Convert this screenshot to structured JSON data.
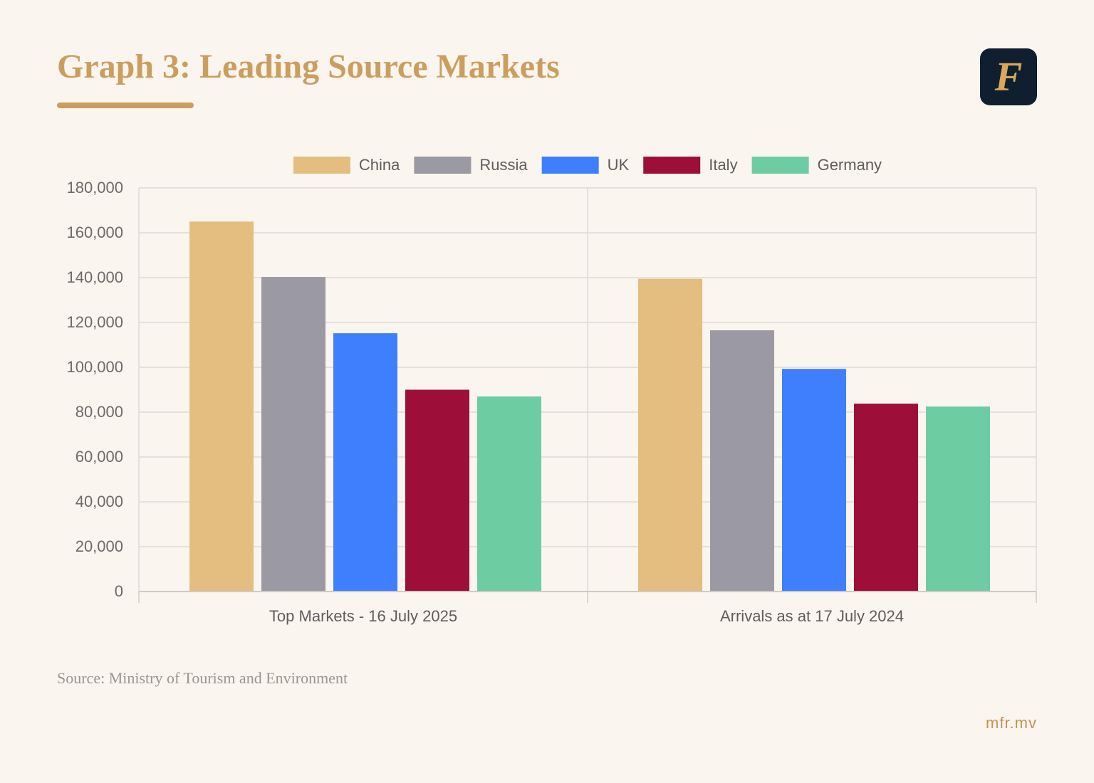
{
  "header": {
    "title": "Graph 3: Leading Source Markets",
    "logo_glyph": "F",
    "logo_icon": "f-monogram-icon"
  },
  "footer": {
    "source": "Source: Ministry of Tourism and Environment",
    "site": "mfr.mv"
  },
  "colors": {
    "accent": "#cc9e5e",
    "background": "#faf5ef",
    "logo_background": "#0f1f2f"
  },
  "chart_data": {
    "type": "bar",
    "categories": [
      "Top Markets - 16 July 2025",
      "Arrivals as at 17 July 2024"
    ],
    "series": [
      {
        "name": "China",
        "color": "#e3be80",
        "values": [
          165000,
          139500
        ]
      },
      {
        "name": "Russia",
        "color": "#9b99a3",
        "values": [
          140300,
          116500
        ]
      },
      {
        "name": "UK",
        "color": "#3f7ffd",
        "values": [
          115200,
          99300
        ]
      },
      {
        "name": "Italy",
        "color": "#9d0f39",
        "values": [
          90000,
          83800
        ]
      },
      {
        "name": "Germany",
        "color": "#6ecca3",
        "values": [
          87000,
          82500
        ]
      }
    ],
    "yticks": [
      "0",
      "20,000",
      "40,000",
      "60,000",
      "80,000",
      "100,000",
      "120,000",
      "140,000",
      "160,000",
      "180,000"
    ],
    "ylim": [
      0,
      180000
    ],
    "grid": true,
    "legend_position": "top-center"
  }
}
